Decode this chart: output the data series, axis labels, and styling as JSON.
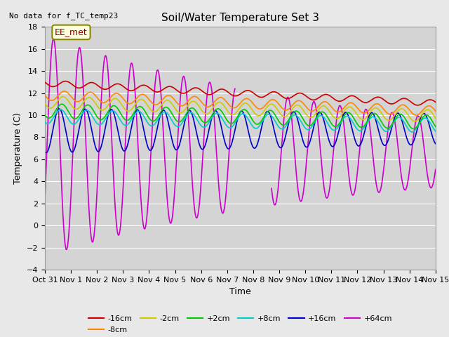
{
  "title": "Soil/Water Temperature Set 3",
  "xlabel": "Time",
  "ylabel": "Temperature (C)",
  "note": "No data for f_TC_temp23",
  "annotation": "EE_met",
  "ylim": [
    -4,
    18
  ],
  "xlim_days": [
    0,
    15
  ],
  "background_color": "#e8e8e8",
  "plot_bg_color": "#d4d4d4",
  "tick_labels": [
    "Oct 31",
    "Nov 1",
    "Nov 2",
    "Nov 3",
    "Nov 4",
    "Nov 5",
    "Nov 6",
    "Nov 7",
    "Nov 8",
    "Nov 9",
    "Nov 10",
    "Nov 11",
    "Nov 12",
    "Nov 13",
    "Nov 14",
    "Nov 15"
  ],
  "tick_positions": [
    0,
    1,
    2,
    3,
    4,
    5,
    6,
    7,
    8,
    9,
    10,
    11,
    12,
    13,
    14,
    15
  ],
  "colors": {
    "-16cm": "#cc0000",
    "-8cm": "#ff8800",
    "-2cm": "#cccc00",
    "+2cm": "#00cc00",
    "+8cm": "#00cccc",
    "+16cm": "#0000cc",
    "+64cm": "#cc00cc"
  }
}
